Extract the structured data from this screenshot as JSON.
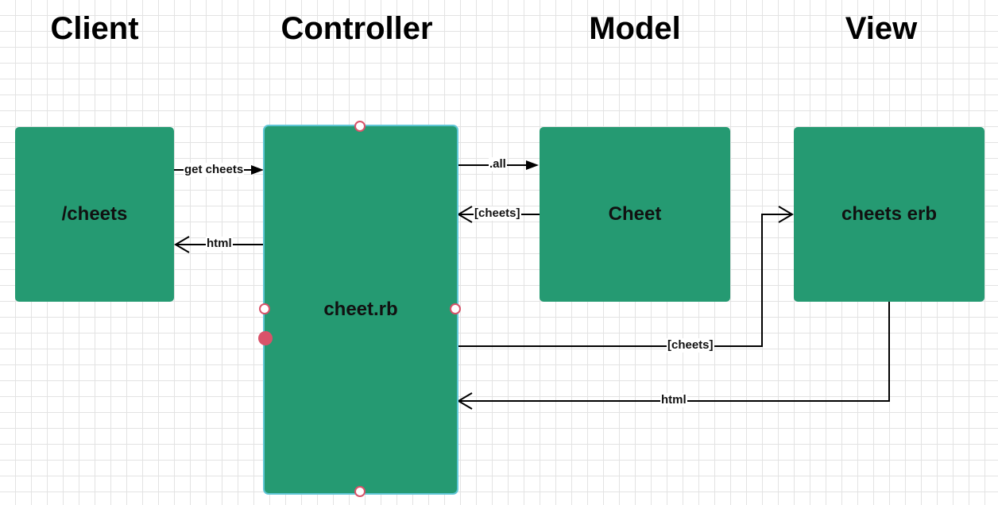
{
  "lanes": {
    "client": "Client",
    "controller": "Controller",
    "model": "Model",
    "view": "View"
  },
  "boxes": {
    "client": "/cheets",
    "controller": "cheet.rb",
    "model": "Cheet",
    "view": "cheets erb"
  },
  "connectors": {
    "get_cheets": "get cheets",
    "html_to_client": "html",
    "all": ".all",
    "cheets_from_model": "[cheets]",
    "cheets_to_view": "[cheets]",
    "html_from_view": "html"
  },
  "colors": {
    "box_fill": "#259a72",
    "selection_outline": "#5fc6d6",
    "handle": "#d9536a",
    "grid": "#e3e3e3"
  }
}
